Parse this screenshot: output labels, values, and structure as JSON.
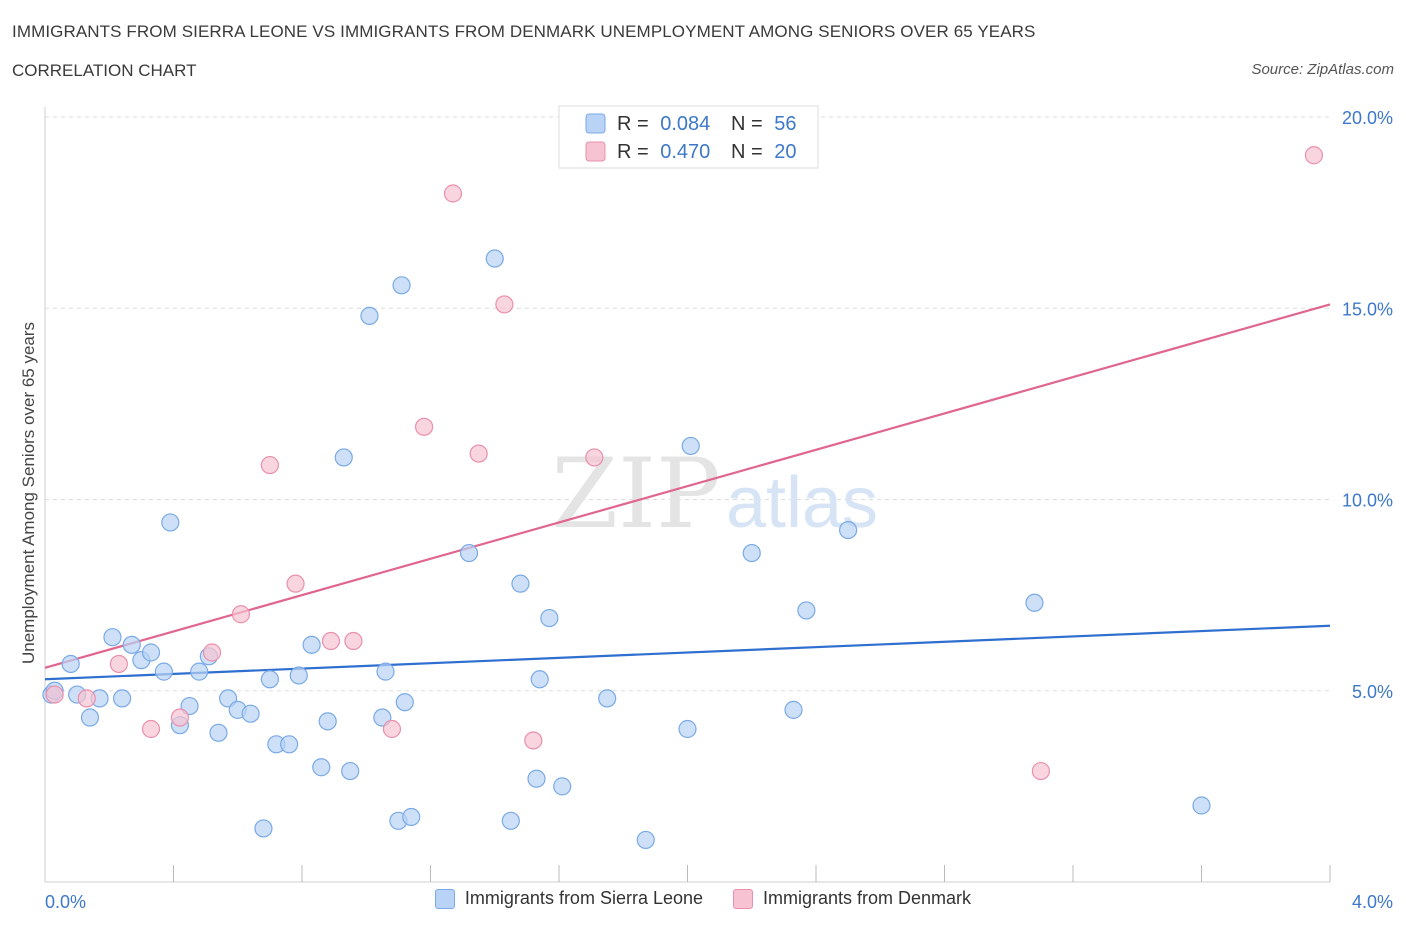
{
  "header": {
    "title": "IMMIGRANTS FROM SIERRA LEONE VS IMMIGRANTS FROM DENMARK UNEMPLOYMENT AMONG SENIORS OVER 65 YEARS",
    "subtitle": "CORRELATION CHART",
    "source": "Source: ZipAtlas.com"
  },
  "watermark": {
    "zip": "ZIP",
    "atlas": "atlas"
  },
  "legend": {
    "r_label": "R =",
    "n_label": "N =",
    "rows": [
      {
        "r": "0.084",
        "n": "56"
      },
      {
        "r": "0.470",
        "n": "20"
      }
    ]
  },
  "colors": {
    "blue_fill": "#b8d3f5",
    "blue_stroke": "#7aaae6",
    "blue_line": "#2f6fcf",
    "pink_fill": "#f7c3d2",
    "pink_stroke": "#ea90ad",
    "pink_line": "#e0658f",
    "value_text": "#3d78c9",
    "grid": "#dddddd"
  },
  "chart_data": {
    "type": "scatter",
    "xlabel": "",
    "ylabel": "Unemployment Among Seniors over 65 years",
    "xlim": [
      0,
      4
    ],
    "ylim": [
      0,
      20
    ],
    "x_tick_labels": [
      {
        "value": 0,
        "label": "0.0%"
      },
      {
        "value": 4,
        "label": "4.0%"
      }
    ],
    "y_tick_labels": [
      {
        "value": 5,
        "label": "5.0%"
      },
      {
        "value": 10,
        "label": "10.0%"
      },
      {
        "value": 15,
        "label": "15.0%"
      },
      {
        "value": 20,
        "label": "20.0%"
      }
    ],
    "grid": true,
    "legend_position": "top-center",
    "series": [
      {
        "name": "Immigrants from Sierra Leone",
        "color": "#b8d3f5",
        "trend": [
          [
            0,
            5.3
          ],
          [
            4,
            6.7
          ]
        ],
        "points": [
          [
            0.02,
            4.9
          ],
          [
            0.08,
            5.7
          ],
          [
            0.1,
            4.9
          ],
          [
            0.14,
            4.3
          ],
          [
            0.17,
            4.8
          ],
          [
            0.21,
            6.4
          ],
          [
            0.24,
            4.8
          ],
          [
            0.27,
            6.2
          ],
          [
            0.3,
            5.8
          ],
          [
            0.33,
            6.0
          ],
          [
            0.37,
            5.5
          ],
          [
            0.39,
            9.4
          ],
          [
            0.42,
            4.1
          ],
          [
            0.45,
            4.6
          ],
          [
            0.48,
            5.5
          ],
          [
            0.51,
            5.9
          ],
          [
            0.54,
            3.9
          ],
          [
            0.57,
            4.8
          ],
          [
            0.6,
            4.5
          ],
          [
            0.64,
            4.4
          ],
          [
            0.68,
            1.4
          ],
          [
            0.7,
            5.3
          ],
          [
            0.72,
            3.6
          ],
          [
            0.76,
            3.6
          ],
          [
            0.79,
            5.4
          ],
          [
            0.83,
            6.2
          ],
          [
            0.86,
            3.0
          ],
          [
            0.88,
            4.2
          ],
          [
            0.93,
            11.1
          ],
          [
            0.95,
            2.9
          ],
          [
            1.01,
            14.8
          ],
          [
            1.05,
            4.3
          ],
          [
            1.06,
            5.5
          ],
          [
            1.1,
            1.6
          ],
          [
            1.11,
            15.6
          ],
          [
            1.12,
            4.7
          ],
          [
            1.14,
            1.7
          ],
          [
            1.32,
            8.6
          ],
          [
            1.4,
            16.3
          ],
          [
            1.45,
            1.6
          ],
          [
            1.48,
            7.8
          ],
          [
            1.53,
            2.7
          ],
          [
            1.54,
            5.3
          ],
          [
            1.57,
            6.9
          ],
          [
            1.61,
            2.5
          ],
          [
            1.75,
            4.8
          ],
          [
            1.87,
            1.1
          ],
          [
            2.0,
            4.0
          ],
          [
            2.01,
            11.4
          ],
          [
            2.2,
            8.6
          ],
          [
            2.33,
            4.5
          ],
          [
            2.37,
            7.1
          ],
          [
            2.5,
            9.2
          ],
          [
            3.08,
            7.3
          ],
          [
            3.6,
            2.0
          ],
          [
            0.03,
            5.0
          ]
        ]
      },
      {
        "name": "Immigrants from Denmark",
        "color": "#f7c3d2",
        "trend": [
          [
            0,
            5.6
          ],
          [
            4,
            15.1
          ]
        ],
        "points": [
          [
            0.03,
            4.9
          ],
          [
            0.13,
            4.8
          ],
          [
            0.23,
            5.7
          ],
          [
            0.33,
            4.0
          ],
          [
            0.42,
            4.3
          ],
          [
            0.52,
            6.0
          ],
          [
            0.61,
            7.0
          ],
          [
            0.7,
            10.9
          ],
          [
            0.78,
            7.8
          ],
          [
            0.89,
            6.3
          ],
          [
            0.96,
            6.3
          ],
          [
            1.08,
            4.0
          ],
          [
            1.18,
            11.9
          ],
          [
            1.27,
            18.0
          ],
          [
            1.35,
            11.2
          ],
          [
            1.43,
            15.1
          ],
          [
            1.52,
            3.7
          ],
          [
            1.71,
            11.1
          ],
          [
            3.1,
            2.9
          ],
          [
            3.95,
            19.0
          ]
        ]
      }
    ]
  }
}
